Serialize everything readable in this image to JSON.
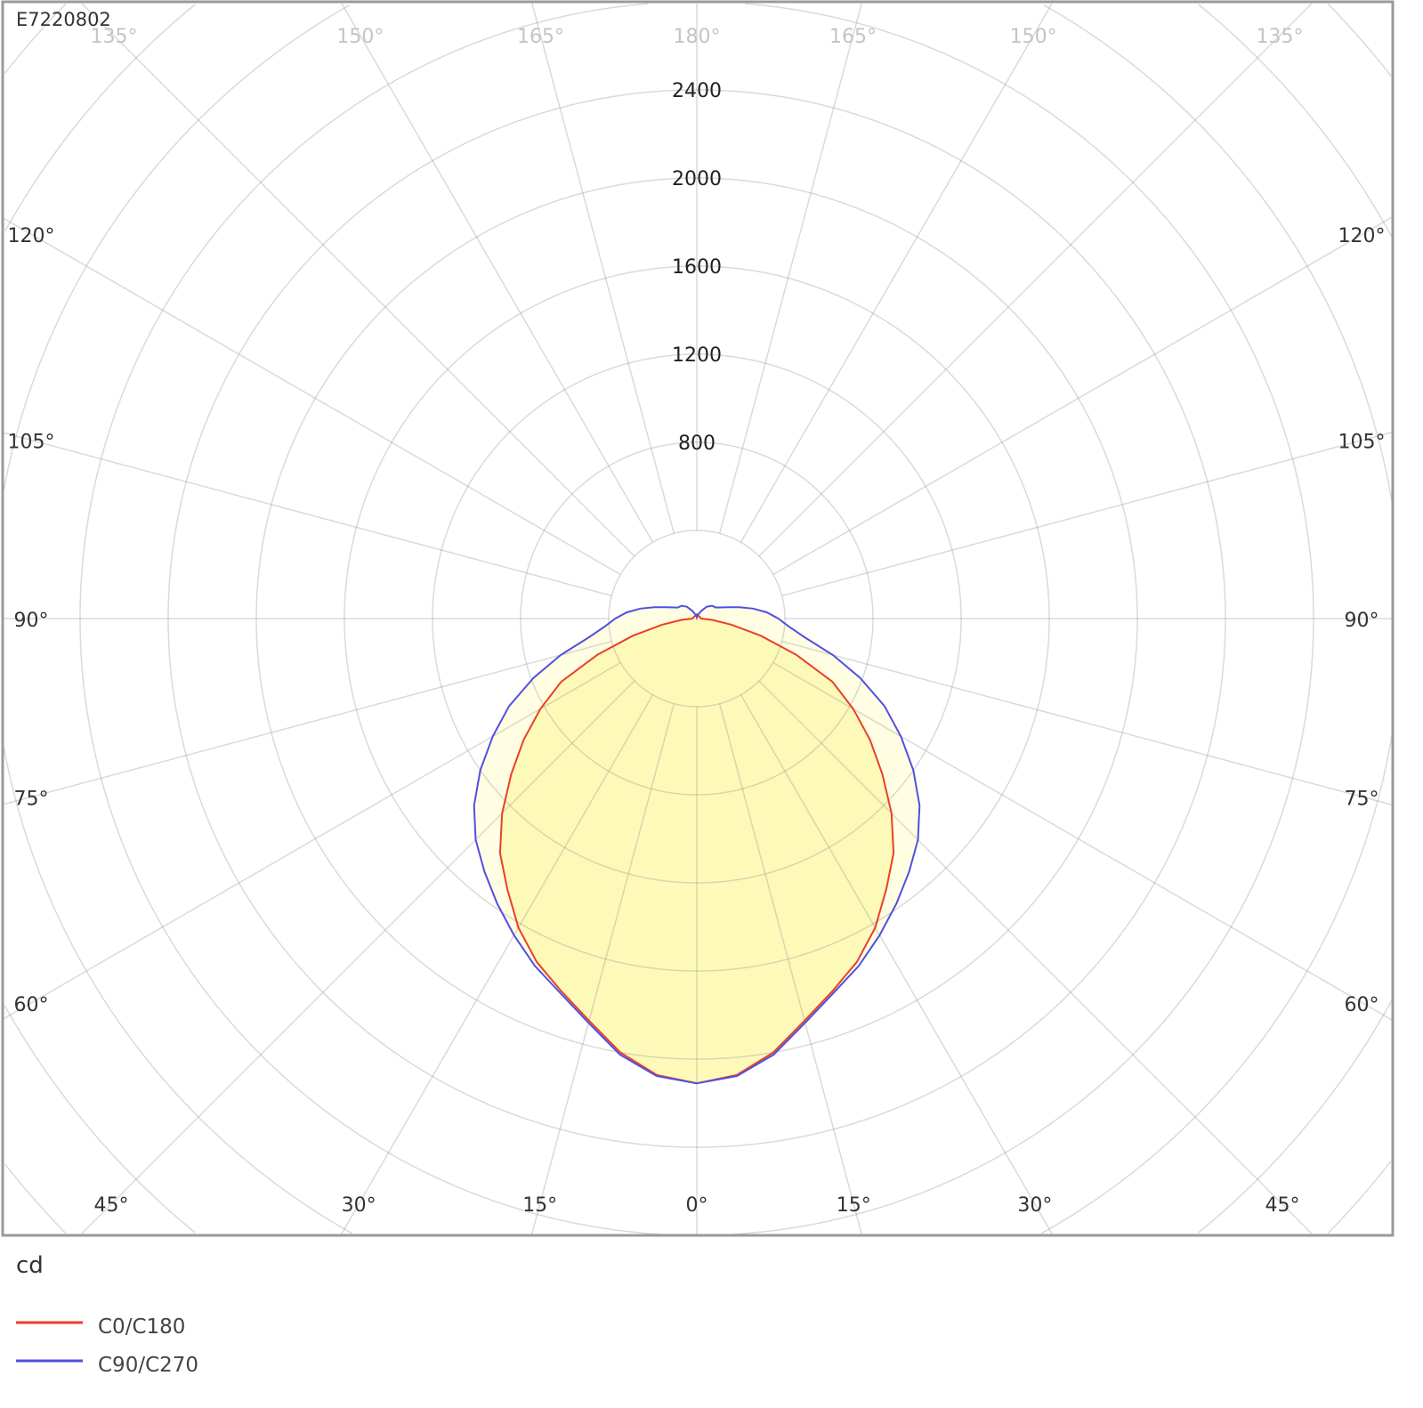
{
  "chart_data": {
    "type": "polar",
    "title": "E7220802",
    "unit_label": "cd",
    "radial_tick_labels": [
      "800",
      "1200",
      "1600",
      "2000",
      "2400"
    ],
    "radial_ticks": [
      800,
      1200,
      1600,
      2000,
      2400
    ],
    "radial_grid_step": 400,
    "angle_step_deg": 15,
    "angle_labels": {
      "bottom": [
        "45°",
        "30°",
        "15°",
        "0°",
        "15°",
        "30°",
        "45°"
      ],
      "sides": [
        "60°",
        "75°",
        "90°",
        "105°",
        "120°"
      ],
      "top": [
        "135°",
        "150°",
        "165°",
        "180°",
        "165°",
        "150°",
        "135°"
      ]
    },
    "grid": true,
    "legend_position": "bottom-left",
    "fill_color": "#fdf9b8",
    "series": [
      {
        "name": "C0/C180",
        "color": "#e8402a",
        "angles": [
          0,
          5,
          10,
          15,
          20,
          25,
          30,
          35,
          40,
          45,
          50,
          55,
          60,
          65,
          70,
          75,
          80,
          85,
          90,
          180
        ],
        "values": [
          2110,
          2080,
          2000,
          1890,
          1800,
          1720,
          1620,
          1500,
          1390,
          1250,
          1100,
          960,
          820,
          680,
          480,
          300,
          160,
          70,
          20,
          20
        ]
      },
      {
        "name": "C90/C270",
        "color": "#5050e0",
        "angles": [
          0,
          5,
          10,
          15,
          20,
          25,
          30,
          35,
          40,
          45,
          50,
          55,
          60,
          65,
          70,
          75,
          80,
          85,
          90,
          95,
          100,
          105,
          110,
          120,
          130,
          140,
          150,
          160,
          170,
          180
        ],
        "values": [
          2110,
          2085,
          2010,
          1900,
          1810,
          1740,
          1660,
          1580,
          1500,
          1420,
          1320,
          1200,
          1070,
          940,
          790,
          640,
          500,
          420,
          370,
          320,
          260,
          200,
          150,
          100,
          90,
          70,
          40,
          20,
          10,
          5
        ]
      }
    ]
  }
}
